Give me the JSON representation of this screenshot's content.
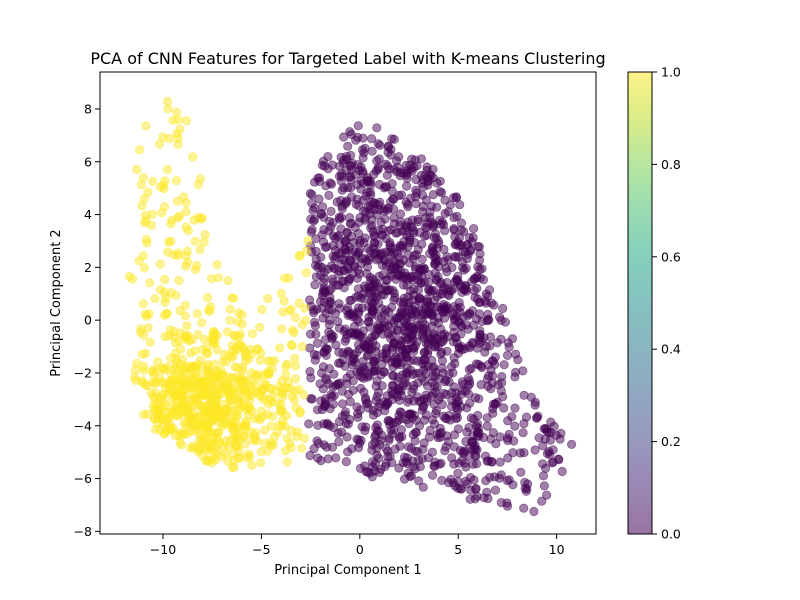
{
  "chart_data": {
    "type": "scatter",
    "title": "PCA of CNN Features for Targeted Label with K-means Clustering",
    "xlabel": "Principal Component 1",
    "ylabel": "Principal Component 2",
    "xlim": [
      -13.2,
      12.0
    ],
    "ylim": [
      -8.1,
      9.4
    ],
    "x_ticks": [
      -10,
      -5,
      0,
      5,
      10
    ],
    "x_tick_labels": [
      "−10",
      "−5",
      "0",
      "5",
      "10"
    ],
    "y_ticks": [
      -8,
      -6,
      -4,
      -2,
      0,
      2,
      4,
      6,
      8
    ],
    "y_tick_labels": [
      "−8",
      "−6",
      "−4",
      "−2",
      "0",
      "2",
      "4",
      "6",
      "8"
    ],
    "grid": false,
    "marker_alpha": 0.5,
    "colorbar": {
      "colormap": "viridis",
      "range": [
        0.0,
        1.0
      ],
      "ticks": [
        0.0,
        0.2,
        0.4,
        0.6,
        0.8,
        1.0
      ],
      "tick_labels": [
        "0.0",
        "0.2",
        "0.4",
        "0.6",
        "0.8",
        "1.0"
      ]
    },
    "clusters": [
      {
        "label": 0,
        "color": "#440154",
        "approx_points": 5500,
        "x_range": [
          -2.6,
          11.0
        ],
        "y_range": [
          -7.3,
          7.6
        ],
        "dense_core": {
          "x": [
            -2.5,
            6.5
          ],
          "y": [
            -4.5,
            6.0
          ]
        },
        "outline": [
          [
            -2.6,
            -5.5
          ],
          [
            -2.6,
            5.1
          ],
          [
            -1.5,
            6.5
          ],
          [
            0.0,
            7.6
          ],
          [
            1.5,
            7.1
          ],
          [
            3.0,
            6.2
          ],
          [
            4.5,
            5.4
          ],
          [
            5.8,
            3.5
          ],
          [
            6.5,
            2.0
          ],
          [
            7.5,
            0.0
          ],
          [
            8.3,
            -1.5
          ],
          [
            9.0,
            -3.0
          ],
          [
            10.0,
            -4.0
          ],
          [
            11.0,
            -4.6
          ],
          [
            10.5,
            -5.5
          ],
          [
            9.0,
            -7.3
          ],
          [
            7.0,
            -7.0
          ],
          [
            5.0,
            -6.8
          ],
          [
            3.0,
            -6.3
          ],
          [
            1.0,
            -6.1
          ],
          [
            -1.0,
            -5.3
          ]
        ]
      },
      {
        "label": 1,
        "color": "#fde725",
        "approx_points": 2600,
        "x_range": [
          -12.2,
          -2.6
        ],
        "y_range": [
          -5.6,
          8.6
        ],
        "dense_core": {
          "x": [
            -10.0,
            -5.5
          ],
          "y": [
            -5.0,
            -1.5
          ]
        },
        "outline": [
          [
            -11.0,
            -4.0
          ],
          [
            -11.5,
            -2.0
          ],
          [
            -11.0,
            0.5
          ],
          [
            -11.8,
            1.5
          ],
          [
            -11.0,
            3.5
          ],
          [
            -11.5,
            5.5
          ],
          [
            -11.0,
            7.5
          ],
          [
            -10.0,
            8.6
          ],
          [
            -9.0,
            8.4
          ],
          [
            -8.5,
            7.0
          ],
          [
            -7.8,
            6.8
          ],
          [
            -8.0,
            5.0
          ],
          [
            -7.6,
            3.5
          ],
          [
            -8.0,
            2.5
          ],
          [
            -7.0,
            2.2
          ],
          [
            -6.0,
            1.0
          ],
          [
            -5.0,
            0.5
          ],
          [
            -4.0,
            1.5
          ],
          [
            -3.0,
            2.5
          ],
          [
            -2.6,
            3.5
          ],
          [
            -2.6,
            0.0
          ],
          [
            -2.9,
            -2.0
          ],
          [
            -2.6,
            -5.5
          ],
          [
            -4.5,
            -5.4
          ],
          [
            -6.5,
            -5.6
          ],
          [
            -8.0,
            -5.3
          ],
          [
            -9.5,
            -4.5
          ]
        ]
      }
    ]
  }
}
